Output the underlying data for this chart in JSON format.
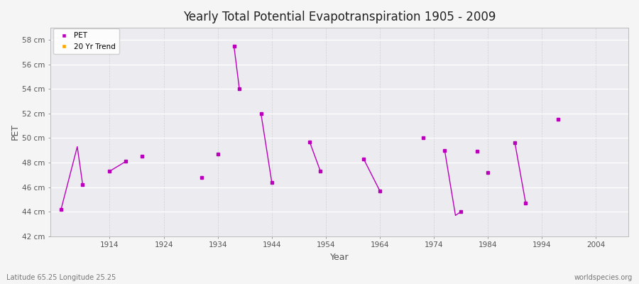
{
  "title": "Yearly Total Potential Evapotranspiration 1905 - 2009",
  "xlabel": "Year",
  "ylabel": "PET",
  "bottom_left_label": "Latitude 65.25 Longitude 25.25",
  "bottom_right_label": "worldspecies.org",
  "ylim": [
    42,
    59
  ],
  "xlim": [
    1903,
    2010
  ],
  "ytick_labels": [
    "42 cm",
    "44 cm",
    "46 cm",
    "48 cm",
    "50 cm",
    "52 cm",
    "54 cm",
    "56 cm",
    "58 cm"
  ],
  "ytick_values": [
    42,
    44,
    46,
    48,
    50,
    52,
    54,
    56,
    58
  ],
  "xtick_values": [
    1914,
    1924,
    1934,
    1944,
    1954,
    1964,
    1974,
    1984,
    1994,
    2004
  ],
  "pet_color": "#BB00BB",
  "trend_color": "#FFA500",
  "fig_facecolor": "#f5f5f5",
  "plot_facecolor": "#ebebf0",
  "legend_entries": [
    "PET",
    "20 Yr Trend"
  ],
  "segment_groups": [
    [
      1905,
      44.2,
      1908,
      49.3,
      1909,
      46.2
    ],
    [
      1914,
      47.3,
      1917,
      48.1
    ],
    [
      1920,
      48.5
    ],
    [
      1931,
      46.8
    ],
    [
      1934,
      48.7
    ],
    [
      1937,
      57.5,
      1938,
      54.0
    ],
    [
      1942,
      52.0,
      1944,
      46.4
    ],
    [
      1951,
      49.7,
      1953,
      47.3
    ],
    [
      1961,
      48.3,
      1964,
      45.7
    ],
    [
      1972,
      50.0
    ],
    [
      1976,
      49.0,
      1978,
      43.7,
      1979,
      44.0
    ],
    [
      1982,
      48.9
    ],
    [
      1984,
      47.2
    ],
    [
      1989,
      49.6,
      1991,
      44.7
    ],
    [
      1997,
      51.5
    ]
  ]
}
